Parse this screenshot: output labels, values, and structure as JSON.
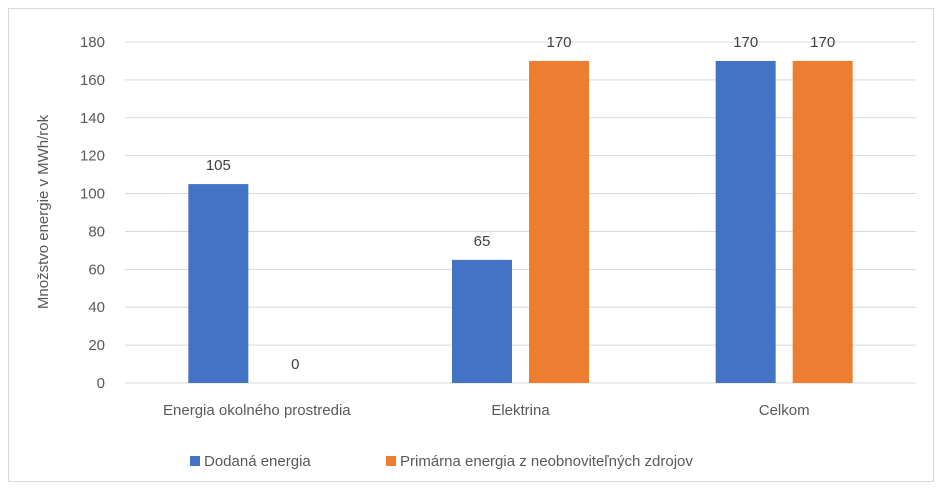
{
  "chart_data": {
    "type": "bar",
    "categories": [
      "Energia okolného prostredia",
      "Elektrina",
      "Celkom"
    ],
    "series": [
      {
        "name": "Dodaná energia",
        "values": [
          105,
          65,
          170
        ],
        "color": "#4472c4"
      },
      {
        "name": "Primárna energia z neobnoviteľných zdrojov",
        "values": [
          0,
          170,
          170
        ],
        "color": "#ed7d31"
      }
    ],
    "ylabel": "Množstvo energie v MWh/rok",
    "xlabel": "",
    "ylim": [
      0,
      180
    ],
    "yticks": [
      0,
      20,
      40,
      60,
      80,
      100,
      120,
      140,
      160,
      180
    ],
    "grid": true,
    "legend_position": "bottom",
    "data_labels": true
  }
}
